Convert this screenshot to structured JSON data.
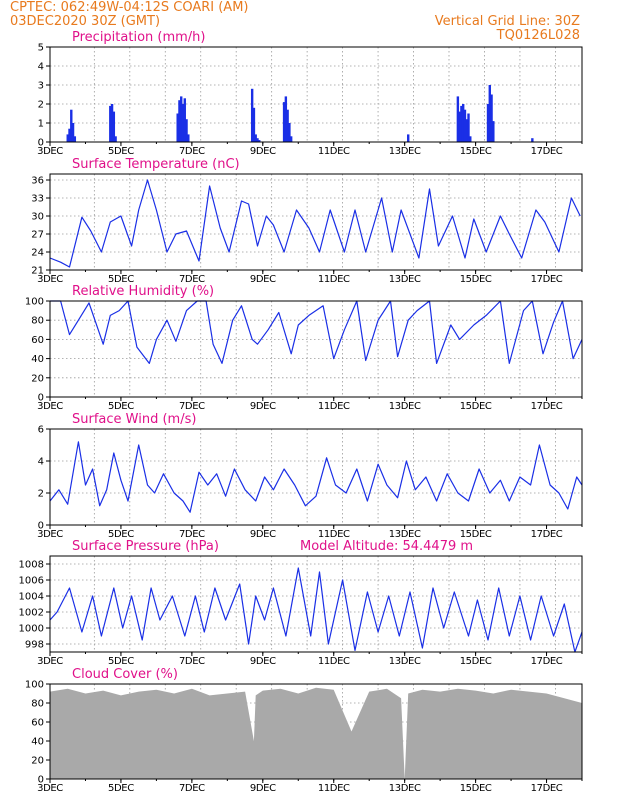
{
  "header": {
    "line1": "CPTEC:   062:49W-04:12S   COARI (AM)",
    "line2": "03DEC2020 30Z (GMT)",
    "grid_note": "Vertical Grid Line: 30Z",
    "code": "TQ0126L028"
  },
  "colors": {
    "header": "#e87a1e",
    "title": "#e0118a",
    "series": "#1a2fe6",
    "cloud": "#a9a9a9",
    "grid": "#9a9a9a"
  },
  "x_axis": {
    "start": "03DEC2020 00Z",
    "end": "18DEC2020 00Z",
    "unit": "days",
    "ticks": [
      3,
      5,
      7,
      9,
      11,
      13,
      15,
      17
    ],
    "tick_labels": [
      "3DEC",
      "5DEC",
      "7DEC",
      "9DEC",
      "11DEC",
      "13DEC",
      "15DEC",
      "17DEC"
    ],
    "vertical_grid_hour": "30Z"
  },
  "chart_data": [
    {
      "type": "bar",
      "title": "Precipitation (mm/h)",
      "ylim": [
        0,
        5
      ],
      "yticks": [
        0,
        1,
        2,
        3,
        4,
        5
      ],
      "x": [
        3.5,
        3.55,
        3.6,
        3.65,
        3.7,
        4.7,
        4.75,
        4.8,
        4.85,
        6.6,
        6.65,
        6.7,
        6.75,
        6.8,
        6.85,
        6.9,
        8.7,
        8.75,
        8.8,
        8.85,
        8.9,
        9.6,
        9.65,
        9.7,
        9.75,
        9.8,
        13.1,
        14.5,
        14.55,
        14.6,
        14.65,
        14.7,
        14.75,
        14.8,
        14.85,
        15.35,
        15.4,
        15.45,
        15.5,
        16.6
      ],
      "values": [
        0.4,
        0.7,
        1.7,
        1.0,
        0.3,
        1.9,
        2.0,
        1.6,
        0.3,
        1.5,
        2.2,
        2.4,
        2.0,
        2.3,
        1.2,
        0.4,
        2.8,
        1.8,
        0.4,
        0.2,
        0.1,
        2.1,
        2.4,
        1.7,
        1.0,
        0.3,
        0.4,
        2.4,
        1.6,
        1.9,
        2.0,
        1.7,
        1.2,
        1.5,
        0.3,
        2.0,
        3.0,
        2.5,
        1.1,
        0.2
      ]
    },
    {
      "type": "line",
      "title": "Surface Temperature (nC)",
      "ylim": [
        21,
        37
      ],
      "yticks": [
        21,
        24,
        27,
        30,
        33,
        36
      ],
      "x": [
        3.0,
        3.3,
        3.55,
        3.9,
        4.15,
        4.45,
        4.7,
        5.0,
        5.3,
        5.5,
        5.75,
        6.0,
        6.3,
        6.55,
        6.85,
        7.2,
        7.5,
        7.8,
        8.05,
        8.4,
        8.6,
        8.85,
        9.1,
        9.3,
        9.6,
        9.95,
        10.3,
        10.6,
        10.9,
        11.3,
        11.6,
        11.9,
        12.35,
        12.65,
        12.9,
        13.4,
        13.7,
        13.95,
        14.35,
        14.7,
        14.95,
        15.3,
        15.7,
        15.95,
        16.3,
        16.7,
        16.95,
        17.35,
        17.7,
        17.95
      ],
      "values": [
        23,
        22.3,
        21.5,
        29.8,
        27.5,
        24,
        29,
        30,
        25,
        31,
        36,
        31,
        24,
        27,
        27.5,
        22.5,
        35,
        28,
        24,
        32.5,
        32,
        25,
        30,
        28.5,
        24,
        31,
        28,
        24,
        31,
        24,
        31,
        24,
        33,
        24,
        31,
        23,
        34.5,
        25,
        30,
        23,
        29.5,
        24,
        30,
        27,
        23,
        31,
        29,
        24,
        33,
        30
      ]
    },
    {
      "type": "line",
      "title": "Relative Humidity (%)",
      "ylim": [
        0,
        100
      ],
      "yticks": [
        0,
        20,
        40,
        60,
        80,
        100
      ],
      "x": [
        3.0,
        3.3,
        3.55,
        3.8,
        4.1,
        4.5,
        4.7,
        4.95,
        5.2,
        5.45,
        5.8,
        6.0,
        6.3,
        6.55,
        6.85,
        7.15,
        7.4,
        7.6,
        7.85,
        8.15,
        8.4,
        8.7,
        8.85,
        9.15,
        9.45,
        9.8,
        10.0,
        10.3,
        10.7,
        11.0,
        11.3,
        11.65,
        11.9,
        12.25,
        12.6,
        12.8,
        13.1,
        13.35,
        13.7,
        13.9,
        14.3,
        14.55,
        14.95,
        15.3,
        15.7,
        15.95,
        16.35,
        16.6,
        16.9,
        17.2,
        17.45,
        17.75,
        18.0
      ],
      "values": [
        100,
        100,
        65,
        80,
        98,
        55,
        85,
        90,
        100,
        52,
        35,
        60,
        80,
        58,
        90,
        100,
        100,
        55,
        35,
        80,
        95,
        60,
        55,
        70,
        88,
        45,
        75,
        85,
        95,
        40,
        70,
        100,
        38,
        80,
        100,
        42,
        80,
        90,
        100,
        35,
        75,
        60,
        75,
        85,
        100,
        35,
        90,
        100,
        45,
        78,
        100,
        40,
        60
      ]
    },
    {
      "type": "line",
      "title": "Surface Wind (m/s)",
      "ylim": [
        0,
        6
      ],
      "yticks": [
        0,
        2,
        4,
        6
      ],
      "x": [
        3.0,
        3.25,
        3.5,
        3.8,
        4.0,
        4.2,
        4.4,
        4.6,
        4.8,
        5.0,
        5.2,
        5.5,
        5.75,
        5.95,
        6.2,
        6.5,
        6.75,
        6.95,
        7.2,
        7.45,
        7.7,
        7.95,
        8.2,
        8.5,
        8.8,
        9.05,
        9.3,
        9.6,
        9.9,
        10.2,
        10.5,
        10.8,
        11.05,
        11.35,
        11.65,
        11.95,
        12.25,
        12.5,
        12.8,
        13.05,
        13.3,
        13.6,
        13.9,
        14.2,
        14.5,
        14.8,
        15.1,
        15.4,
        15.7,
        15.95,
        16.25,
        16.55,
        16.8,
        17.1,
        17.35,
        17.6,
        17.85,
        18.0
      ],
      "values": [
        1.5,
        2.2,
        1.3,
        5.2,
        2.5,
        3.5,
        1.2,
        2.2,
        4.5,
        2.8,
        1.5,
        5.0,
        2.5,
        2.0,
        3.2,
        2.0,
        1.5,
        0.8,
        3.3,
        2.5,
        3.2,
        1.8,
        3.5,
        2.2,
        1.5,
        3.0,
        2.2,
        3.5,
        2.5,
        1.2,
        1.8,
        4.2,
        2.5,
        2.0,
        3.5,
        1.5,
        3.8,
        2.5,
        1.7,
        4.0,
        2.2,
        3.0,
        1.5,
        3.2,
        2.0,
        1.5,
        3.5,
        2.0,
        2.8,
        1.5,
        3.0,
        2.5,
        5.0,
        2.5,
        2.0,
        1.0,
        3.0,
        2.5
      ]
    },
    {
      "type": "line",
      "title": "Surface Pressure (hPa)",
      "annotation": "Model Altitude: 54.4479 m",
      "ylim": [
        997,
        1009
      ],
      "yticks": [
        998,
        1000,
        1002,
        1004,
        1006,
        1008
      ],
      "x": [
        3.0,
        3.2,
        3.55,
        3.9,
        4.2,
        4.45,
        4.8,
        5.05,
        5.3,
        5.6,
        5.85,
        6.1,
        6.45,
        6.8,
        7.1,
        7.35,
        7.65,
        7.95,
        8.35,
        8.6,
        8.8,
        9.05,
        9.3,
        9.65,
        10.0,
        10.35,
        10.6,
        10.85,
        11.25,
        11.6,
        11.95,
        12.25,
        12.55,
        12.85,
        13.15,
        13.5,
        13.8,
        14.1,
        14.4,
        14.8,
        15.05,
        15.35,
        15.65,
        15.95,
        16.25,
        16.55,
        16.85,
        17.2,
        17.5,
        17.8,
        18.0
      ],
      "values": [
        1001,
        1002,
        1005,
        999.5,
        1004,
        999,
        1005,
        1000,
        1004,
        998.5,
        1005,
        1001,
        1004,
        999,
        1004,
        999.5,
        1005,
        1001,
        1005.5,
        998,
        1004,
        1001,
        1005,
        999,
        1007.5,
        999,
        1007,
        998,
        1006,
        997.2,
        1004.5,
        999.5,
        1004,
        999,
        1004.5,
        997.5,
        1005,
        1000,
        1004.5,
        999,
        1003.5,
        998.5,
        1005,
        999,
        1004,
        998.5,
        1004,
        999,
        1003,
        996.5,
        999.5
      ]
    },
    {
      "type": "area",
      "title": "Cloud Cover (%)",
      "ylim": [
        0,
        100
      ],
      "yticks": [
        0,
        20,
        40,
        60,
        80,
        100
      ],
      "x": [
        3.0,
        3.5,
        4.0,
        4.5,
        5.0,
        5.5,
        6.0,
        6.5,
        7.0,
        7.5,
        8.0,
        8.5,
        8.75,
        8.8,
        9.0,
        9.5,
        10.0,
        10.5,
        11.0,
        11.5,
        12.0,
        12.5,
        12.9,
        13.0,
        13.1,
        13.5,
        14.0,
        14.5,
        15.0,
        15.5,
        16.0,
        16.5,
        17.0,
        17.5,
        18.0
      ],
      "values": [
        92,
        95,
        90,
        93,
        88,
        92,
        94,
        90,
        95,
        88,
        90,
        92,
        40,
        88,
        93,
        95,
        90,
        96,
        94,
        50,
        92,
        95,
        85,
        0,
        90,
        94,
        92,
        95,
        93,
        90,
        94,
        92,
        90,
        85,
        80
      ]
    }
  ]
}
